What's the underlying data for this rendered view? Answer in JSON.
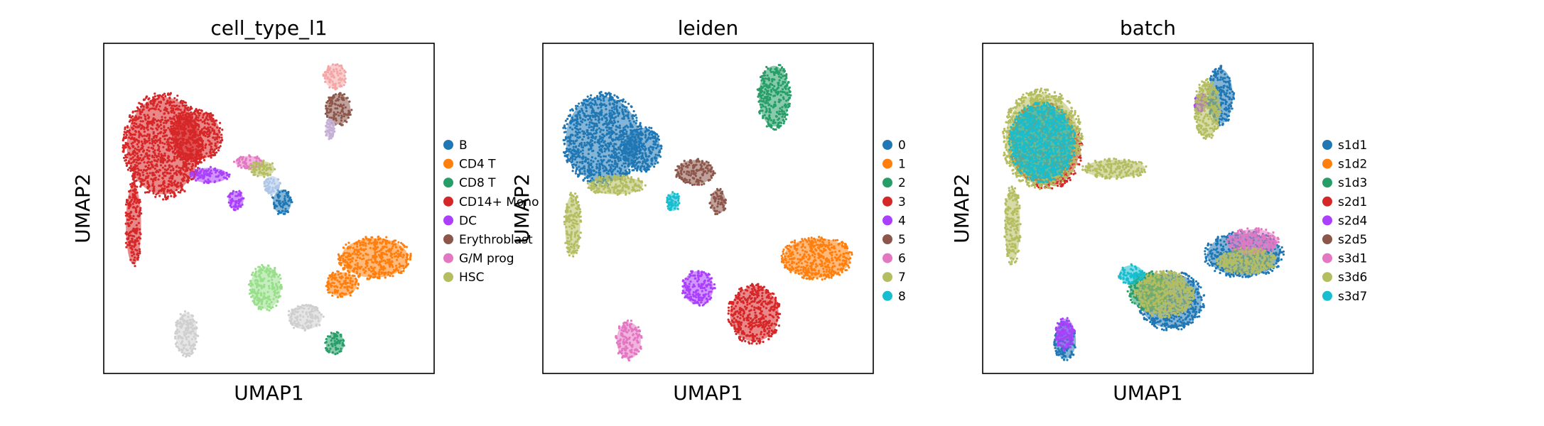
{
  "chart_data": [
    {
      "type": "scatter",
      "title": "cell_type_l1",
      "xlabel": "UMAP1",
      "ylabel": "UMAP2",
      "legend_placement": "right",
      "grid": false,
      "xlim": [
        0,
        100
      ],
      "ylim": [
        0,
        100
      ],
      "series": [
        {
          "name": "B",
          "color": "#1f77b4",
          "clusters": [
            {
              "cx": 54.0,
              "cy": 52.0,
              "rx": 3.0,
              "ry": 4.0
            }
          ]
        },
        {
          "name": "CD4 T",
          "color": "#ff7f0e",
          "clusters": [
            {
              "cx": 82.0,
              "cy": 35.0,
              "rx": 11.0,
              "ry": 6.5
            },
            {
              "cx": 72.0,
              "cy": 27.0,
              "rx": 5.0,
              "ry": 4.0
            }
          ]
        },
        {
          "name": "CD8 T",
          "color": "#279e68",
          "clusters": [
            {
              "cx": 70.0,
              "cy": 9.0,
              "rx": 3.0,
              "ry": 3.5
            }
          ]
        },
        {
          "name": "CD14+ Mono",
          "color": "#d62728",
          "clusters": [
            {
              "cx": 18.0,
              "cy": 69.0,
              "rx": 12.0,
              "ry": 16.0
            },
            {
              "cx": 9.0,
              "cy": 45.0,
              "rx": 2.5,
              "ry": 13.0
            },
            {
              "cx": 28.0,
              "cy": 72.0,
              "rx": 8.0,
              "ry": 8.0
            }
          ]
        },
        {
          "name": "DC",
          "color": "#aa40fc",
          "clusters": [
            {
              "cx": 40.0,
              "cy": 52.5,
              "rx": 2.5,
              "ry": 3.0
            },
            {
              "cx": 32.0,
              "cy": 60.0,
              "rx": 6.0,
              "ry": 2.5
            }
          ]
        },
        {
          "name": "Erythroblast",
          "color": "#8c564b",
          "clusters": [
            {
              "cx": 71.0,
              "cy": 80.0,
              "rx": 4.0,
              "ry": 5.0
            }
          ]
        },
        {
          "name": "G/M prog",
          "color": "#e377c2",
          "clusters": [
            {
              "cx": 44.0,
              "cy": 64.0,
              "rx": 4.5,
              "ry": 2.0
            }
          ]
        },
        {
          "name": "HSC",
          "color": "#b5bd61",
          "clusters": [
            {
              "cx": 48.0,
              "cy": 62.0,
              "rx": 4.0,
              "ry": 2.5
            }
          ]
        },
        {
          "name": "",
          "color": "#98df8a",
          "clusters": [
            {
              "cx": 49.0,
              "cy": 26.0,
              "rx": 5.0,
              "ry": 7.0
            }
          ]
        },
        {
          "name": "",
          "color": "#f4a6a6",
          "clusters": [
            {
              "cx": 70.0,
              "cy": 90.0,
              "rx": 3.5,
              "ry": 4.0
            }
          ]
        },
        {
          "name": "",
          "color": "#c5b0d5",
          "clusters": [
            {
              "cx": 68.5,
              "cy": 74.0,
              "rx": 1.5,
              "ry": 3.0
            }
          ]
        },
        {
          "name": "",
          "color": "#aec7e8",
          "clusters": [
            {
              "cx": 51.0,
              "cy": 57.0,
              "rx": 2.5,
              "ry": 3.0
            }
          ]
        },
        {
          "name": "",
          "color": "#cfcfcf",
          "clusters": [
            {
              "cx": 25.0,
              "cy": 12.0,
              "rx": 3.5,
              "ry": 7.0
            },
            {
              "cx": 61.0,
              "cy": 17.0,
              "rx": 5.5,
              "ry": 4.0
            }
          ]
        }
      ]
    },
    {
      "type": "scatter",
      "title": "leiden",
      "xlabel": "UMAP1",
      "ylabel": "UMAP2",
      "legend_placement": "right",
      "grid": false,
      "xlim": [
        0,
        100
      ],
      "ylim": [
        0,
        100
      ],
      "series": [
        {
          "name": "0",
          "color": "#1f77b4",
          "clusters": [
            {
              "cx": 18.0,
              "cy": 71.0,
              "rx": 12.0,
              "ry": 14.0
            },
            {
              "cx": 30.0,
              "cy": 68.0,
              "rx": 6.0,
              "ry": 7.0
            }
          ]
        },
        {
          "name": "1",
          "color": "#ff7f0e",
          "clusters": [
            {
              "cx": 83.0,
              "cy": 35.0,
              "rx": 11.0,
              "ry": 6.5
            }
          ]
        },
        {
          "name": "2",
          "color": "#279e68",
          "clusters": [
            {
              "cx": 70.0,
              "cy": 84.0,
              "rx": 5.0,
              "ry": 10.0
            }
          ]
        },
        {
          "name": "3",
          "color": "#d62728",
          "clusters": [
            {
              "cx": 64.0,
              "cy": 18.0,
              "rx": 8.0,
              "ry": 9.0
            }
          ]
        },
        {
          "name": "4",
          "color": "#aa40fc",
          "clusters": [
            {
              "cx": 47.0,
              "cy": 26.0,
              "rx": 5.0,
              "ry": 5.5
            }
          ]
        },
        {
          "name": "5",
          "color": "#8c564b",
          "clusters": [
            {
              "cx": 46.0,
              "cy": 61.0,
              "rx": 6.0,
              "ry": 4.0
            },
            {
              "cx": 53.0,
              "cy": 52.0,
              "rx": 2.5,
              "ry": 4.0
            }
          ]
        },
        {
          "name": "6",
          "color": "#e377c2",
          "clusters": [
            {
              "cx": 26.0,
              "cy": 10.0,
              "rx": 4.0,
              "ry": 6.0
            }
          ]
        },
        {
          "name": "7",
          "color": "#b5bd61",
          "clusters": [
            {
              "cx": 9.0,
              "cy": 45.0,
              "rx": 2.5,
              "ry": 10.0
            },
            {
              "cx": 22.0,
              "cy": 57.0,
              "rx": 9.0,
              "ry": 3.0
            }
          ]
        },
        {
          "name": "8",
          "color": "#17becf",
          "clusters": [
            {
              "cx": 39.5,
              "cy": 52.0,
              "rx": 2.0,
              "ry": 3.0
            }
          ]
        }
      ]
    },
    {
      "type": "scatter",
      "title": "batch",
      "xlabel": "UMAP1",
      "ylabel": "UMAP2",
      "legend_placement": "right",
      "grid": false,
      "xlim": [
        0,
        100
      ],
      "ylim": [
        0,
        100
      ],
      "series": [
        {
          "name": "s1d1",
          "color": "#1f77b4",
          "clusters": [
            {
              "cx": 79.0,
              "cy": 36.0,
              "rx": 12.0,
              "ry": 7.0
            },
            {
              "cx": 72.0,
              "cy": 84.0,
              "rx": 4.0,
              "ry": 9.0
            },
            {
              "cx": 25.0,
              "cy": 10.0,
              "rx": 3.5,
              "ry": 6.0
            },
            {
              "cx": 57.0,
              "cy": 22.0,
              "rx": 10.0,
              "ry": 9.0
            }
          ]
        },
        {
          "name": "s1d2",
          "color": "#ff7f0e",
          "clusters": [
            {
              "cx": 18.0,
              "cy": 70.0,
              "rx": 10.0,
              "ry": 12.0
            }
          ]
        },
        {
          "name": "s1d3",
          "color": "#279e68",
          "clusters": [
            {
              "cx": 18.0,
              "cy": 70.0,
              "rx": 10.0,
              "ry": 12.0
            },
            {
              "cx": 50.0,
              "cy": 25.0,
              "rx": 6.0,
              "ry": 6.0
            }
          ]
        },
        {
          "name": "s2d1",
          "color": "#d62728",
          "clusters": [
            {
              "cx": 20.0,
              "cy": 68.0,
              "rx": 10.0,
              "ry": 12.0
            }
          ]
        },
        {
          "name": "s2d4",
          "color": "#aa40fc",
          "clusters": [
            {
              "cx": 25.0,
              "cy": 12.0,
              "rx": 3.0,
              "ry": 5.0
            },
            {
              "cx": 66.0,
              "cy": 82.0,
              "rx": 2.0,
              "ry": 3.0
            }
          ]
        },
        {
          "name": "s2d5",
          "color": "#8c564b",
          "clusters": [
            {
              "cx": 18.0,
              "cy": 70.0,
              "rx": 10.0,
              "ry": 12.0
            }
          ]
        },
        {
          "name": "s3d1",
          "color": "#e377c2",
          "clusters": [
            {
              "cx": 82.0,
              "cy": 40.0,
              "rx": 8.0,
              "ry": 4.0
            }
          ]
        },
        {
          "name": "s3d6",
          "color": "#b5bd61",
          "clusters": [
            {
              "cx": 18.0,
              "cy": 71.0,
              "rx": 12.0,
              "ry": 15.0
            },
            {
              "cx": 9.0,
              "cy": 45.0,
              "rx": 2.5,
              "ry": 12.0
            },
            {
              "cx": 40.0,
              "cy": 62.0,
              "rx": 10.0,
              "ry": 3.0
            },
            {
              "cx": 68.0,
              "cy": 80.0,
              "rx": 4.0,
              "ry": 9.0
            },
            {
              "cx": 55.0,
              "cy": 24.0,
              "rx": 9.0,
              "ry": 7.0
            },
            {
              "cx": 80.0,
              "cy": 34.0,
              "rx": 9.0,
              "ry": 4.0
            }
          ]
        },
        {
          "name": "s3d7",
          "color": "#17becf",
          "clusters": [
            {
              "cx": 18.0,
              "cy": 70.0,
              "rx": 10.0,
              "ry": 12.0
            },
            {
              "cx": 45.0,
              "cy": 30.0,
              "rx": 4.0,
              "ry": 3.0
            }
          ]
        }
      ]
    }
  ]
}
